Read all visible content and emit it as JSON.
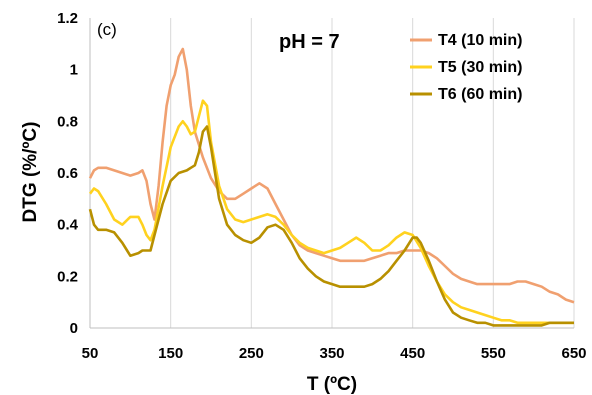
{
  "chart_data": {
    "type": "line",
    "panel_label": "(c)",
    "annotation": "pH = 7",
    "xlabel": "T (ºC)",
    "ylabel": "DTG (%/ºC)",
    "xlim": [
      50,
      650
    ],
    "ylim": [
      0,
      1.2
    ],
    "xticks": [
      "50",
      "150",
      "250",
      "350",
      "450",
      "550",
      "650"
    ],
    "yticks": [
      "0",
      "0.2",
      "0.4",
      "0.6",
      "0.8",
      "1",
      "1.2"
    ],
    "grid": "vertical",
    "legend_position": "top-right",
    "series": [
      {
        "name": "T4 (10 min)",
        "color": "#F0A070",
        "x": [
          50,
          55,
          60,
          70,
          80,
          90,
          100,
          110,
          115,
          120,
          125,
          130,
          135,
          140,
          145,
          150,
          155,
          160,
          165,
          170,
          175,
          180,
          190,
          200,
          210,
          220,
          230,
          240,
          250,
          260,
          270,
          280,
          290,
          300,
          310,
          320,
          330,
          340,
          350,
          360,
          370,
          380,
          390,
          400,
          410,
          420,
          430,
          440,
          450,
          460,
          470,
          480,
          490,
          500,
          510,
          520,
          530,
          540,
          550,
          560,
          570,
          580,
          590,
          600,
          610,
          620,
          630,
          640,
          650
        ],
        "y": [
          0.58,
          0.61,
          0.62,
          0.62,
          0.61,
          0.6,
          0.59,
          0.6,
          0.61,
          0.57,
          0.48,
          0.42,
          0.55,
          0.72,
          0.86,
          0.94,
          0.98,
          1.05,
          1.08,
          1.0,
          0.86,
          0.76,
          0.66,
          0.58,
          0.53,
          0.5,
          0.5,
          0.52,
          0.54,
          0.56,
          0.54,
          0.48,
          0.42,
          0.36,
          0.32,
          0.3,
          0.29,
          0.28,
          0.27,
          0.26,
          0.26,
          0.26,
          0.26,
          0.27,
          0.28,
          0.29,
          0.29,
          0.3,
          0.3,
          0.3,
          0.29,
          0.27,
          0.24,
          0.21,
          0.19,
          0.18,
          0.17,
          0.17,
          0.17,
          0.17,
          0.17,
          0.18,
          0.18,
          0.17,
          0.16,
          0.14,
          0.13,
          0.11,
          0.1
        ]
      },
      {
        "name": "T5 (30 min)",
        "color": "#FFD21F",
        "x": [
          50,
          55,
          60,
          70,
          80,
          90,
          100,
          110,
          115,
          120,
          125,
          130,
          140,
          150,
          160,
          165,
          170,
          175,
          180,
          185,
          190,
          195,
          200,
          210,
          220,
          230,
          240,
          250,
          260,
          270,
          280,
          290,
          300,
          310,
          320,
          330,
          340,
          350,
          360,
          370,
          380,
          390,
          400,
          410,
          420,
          430,
          440,
          450,
          460,
          470,
          480,
          490,
          500,
          510,
          520,
          530,
          540,
          550,
          560,
          570,
          580,
          590,
          600,
          610,
          620,
          630,
          640,
          650
        ],
        "y": [
          0.52,
          0.54,
          0.53,
          0.48,
          0.42,
          0.4,
          0.43,
          0.43,
          0.4,
          0.36,
          0.34,
          0.38,
          0.55,
          0.7,
          0.78,
          0.8,
          0.78,
          0.75,
          0.76,
          0.82,
          0.88,
          0.86,
          0.72,
          0.55,
          0.46,
          0.42,
          0.41,
          0.42,
          0.43,
          0.44,
          0.43,
          0.4,
          0.36,
          0.33,
          0.31,
          0.3,
          0.29,
          0.3,
          0.31,
          0.33,
          0.35,
          0.33,
          0.3,
          0.3,
          0.32,
          0.35,
          0.37,
          0.36,
          0.31,
          0.24,
          0.18,
          0.13,
          0.1,
          0.08,
          0.07,
          0.06,
          0.05,
          0.04,
          0.03,
          0.03,
          0.02,
          0.02,
          0.02,
          0.02,
          0.02,
          0.02,
          0.02,
          0.02
        ]
      },
      {
        "name": "T6 (60 min)",
        "color": "#B89000",
        "x": [
          50,
          55,
          60,
          70,
          80,
          90,
          100,
          110,
          115,
          120,
          125,
          130,
          140,
          150,
          160,
          170,
          175,
          180,
          185,
          190,
          195,
          200,
          210,
          220,
          230,
          240,
          250,
          260,
          270,
          280,
          290,
          300,
          310,
          320,
          330,
          340,
          350,
          360,
          370,
          380,
          390,
          400,
          410,
          420,
          430,
          440,
          450,
          455,
          460,
          470,
          480,
          490,
          500,
          510,
          520,
          530,
          540,
          550,
          560,
          570,
          580,
          590,
          600,
          610,
          620,
          630,
          640,
          650
        ],
        "y": [
          0.46,
          0.4,
          0.38,
          0.38,
          0.37,
          0.33,
          0.28,
          0.29,
          0.3,
          0.3,
          0.3,
          0.36,
          0.48,
          0.57,
          0.6,
          0.61,
          0.62,
          0.63,
          0.68,
          0.76,
          0.78,
          0.7,
          0.5,
          0.4,
          0.36,
          0.34,
          0.33,
          0.35,
          0.39,
          0.4,
          0.38,
          0.33,
          0.27,
          0.23,
          0.2,
          0.18,
          0.17,
          0.16,
          0.16,
          0.16,
          0.16,
          0.17,
          0.19,
          0.22,
          0.26,
          0.3,
          0.35,
          0.35,
          0.33,
          0.26,
          0.18,
          0.11,
          0.06,
          0.04,
          0.03,
          0.02,
          0.02,
          0.01,
          0.01,
          0.01,
          0.01,
          0.01,
          0.01,
          0.01,
          0.02,
          0.02,
          0.02,
          0.02
        ]
      }
    ]
  }
}
